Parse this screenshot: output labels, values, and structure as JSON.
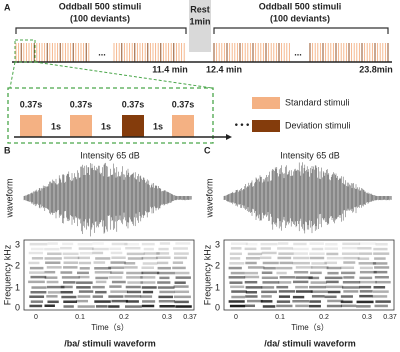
{
  "panel_a": {
    "label": "A",
    "block1": {
      "title": "Oddball 500 stimuli",
      "subtitle": "(100 deviants)"
    },
    "rest": {
      "title": "Rest",
      "subtitle": "1min"
    },
    "block2": {
      "title": "Oddball 500 stimuli",
      "subtitle": "(100 deviants)"
    },
    "times": [
      "11.4 min",
      "12.4 min",
      "23.8min"
    ],
    "durations": [
      "0.37s",
      "0.37s",
      "0.37s",
      "0.37s"
    ],
    "isis": [
      "1s",
      "1s",
      "1s"
    ],
    "legend": [
      "Standard stimuli",
      "Deviation stimuli"
    ]
  },
  "panels": [
    {
      "label": "B",
      "title": "Intensity 65 dB",
      "waveform_label": "waveform",
      "ylabel": "Frequency kHz",
      "yticks": [
        "0",
        "1",
        "2",
        "3"
      ],
      "xticks": [
        "0",
        "0.1",
        "0.2",
        "0.3",
        "0.37"
      ],
      "xlabel": "Time（s）",
      "caption": "/ba/ stimuli waveform"
    },
    {
      "label": "C",
      "title": "Intensity 65 dB",
      "waveform_label": "waveform",
      "ylabel": "Frequency kHz",
      "yticks": [
        "0",
        "1",
        "2",
        "3"
      ],
      "xticks": [
        "0",
        "0.1",
        "0.2",
        "0.3",
        "0.37"
      ],
      "xlabel": "Time（s）",
      "caption": "/da/ stimuli waveform"
    }
  ]
}
